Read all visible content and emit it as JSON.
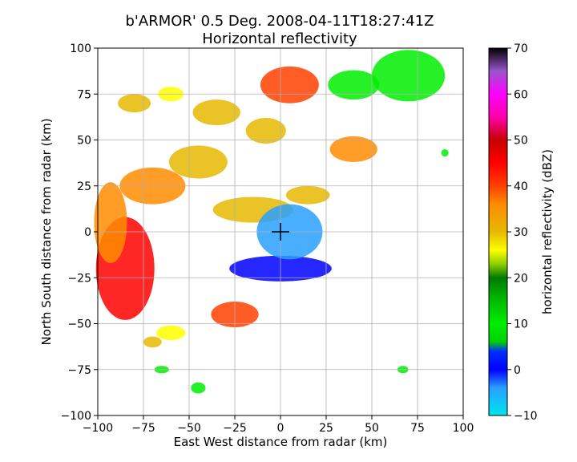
{
  "chart_data": {
    "type": "heatmap",
    "title": "b'ARMOR' 0.5 Deg. 2008-04-11T18:27:41Z",
    "subtitle": "Horizontal reflectivity",
    "xlabel": "East West distance from radar (km)",
    "ylabel": "North South distance from radar (km)",
    "xlim": [
      -100,
      100
    ],
    "ylim": [
      -100,
      100
    ],
    "xticks": [
      "−100",
      "−75",
      "−50",
      "−25",
      "0",
      "25",
      "50",
      "75",
      "100"
    ],
    "yticks": [
      "100",
      "75",
      "50",
      "25",
      "0",
      "−25",
      "−50",
      "−75",
      "−100"
    ],
    "xtick_values": [
      -100,
      -75,
      -50,
      -25,
      0,
      25,
      50,
      75,
      100
    ],
    "ytick_values": [
      100,
      75,
      50,
      25,
      0,
      -25,
      -50,
      -75,
      -100
    ],
    "grid": true,
    "radar_marker": [
      0,
      0
    ],
    "colorbar": {
      "label": "horizontal reflectivity (dBZ)",
      "range": [
        -10,
        70
      ],
      "ticks": [
        "70",
        "60",
        "50",
        "40",
        "30",
        "20",
        "10",
        "0",
        "−10"
      ],
      "tick_values": [
        70,
        60,
        50,
        40,
        30,
        20,
        10,
        0,
        -10
      ],
      "stops": [
        {
          "v": -10,
          "c": "#00e5ee"
        },
        {
          "v": -4,
          "c": "#2aa0ff"
        },
        {
          "v": 0,
          "c": "#0000ff"
        },
        {
          "v": 4,
          "c": "#0030ff"
        },
        {
          "v": 6,
          "c": "#00d000"
        },
        {
          "v": 10,
          "c": "#00ee00"
        },
        {
          "v": 16,
          "c": "#00b000"
        },
        {
          "v": 20,
          "c": "#007a00"
        },
        {
          "v": 23,
          "c": "#8ecf00"
        },
        {
          "v": 26,
          "c": "#ffff00"
        },
        {
          "v": 30,
          "c": "#e6b800"
        },
        {
          "v": 36,
          "c": "#ff8c00"
        },
        {
          "v": 40,
          "c": "#ff4000"
        },
        {
          "v": 45,
          "c": "#ff0000"
        },
        {
          "v": 50,
          "c": "#c80000"
        },
        {
          "v": 55,
          "c": "#ff00aa"
        },
        {
          "v": 60,
          "c": "#ff00ff"
        },
        {
          "v": 65,
          "c": "#9955cc"
        },
        {
          "v": 70,
          "c": "#000000"
        }
      ]
    },
    "echo_cells": [
      {
        "x": -85,
        "y": -20,
        "rx": 16,
        "ry": 28,
        "dbz": 47
      },
      {
        "x": -93,
        "y": 5,
        "rx": 9,
        "ry": 22,
        "dbz": 38
      },
      {
        "x": -70,
        "y": 25,
        "rx": 18,
        "ry": 10,
        "dbz": 36
      },
      {
        "x": -45,
        "y": 38,
        "rx": 16,
        "ry": 9,
        "dbz": 34
      },
      {
        "x": -35,
        "y": 65,
        "rx": 13,
        "ry": 7,
        "dbz": 32
      },
      {
        "x": 5,
        "y": 80,
        "rx": 16,
        "ry": 10,
        "dbz": 40
      },
      {
        "x": -8,
        "y": 55,
        "rx": 11,
        "ry": 7,
        "dbz": 34
      },
      {
        "x": 40,
        "y": 45,
        "rx": 13,
        "ry": 7,
        "dbz": 38
      },
      {
        "x": -15,
        "y": 12,
        "rx": 22,
        "ry": 7,
        "dbz": 32
      },
      {
        "x": 15,
        "y": 20,
        "rx": 12,
        "ry": 5,
        "dbz": 30
      },
      {
        "x": -25,
        "y": -45,
        "rx": 13,
        "ry": 7,
        "dbz": 43
      },
      {
        "x": -80,
        "y": 70,
        "rx": 9,
        "ry": 5,
        "dbz": 30
      },
      {
        "x": -60,
        "y": 75,
        "rx": 7,
        "ry": 4,
        "dbz": 28
      },
      {
        "x": 0,
        "y": -20,
        "rx": 28,
        "ry": 7,
        "dbz": 2
      },
      {
        "x": 5,
        "y": 0,
        "rx": 18,
        "ry": 15,
        "dbz": -4
      },
      {
        "x": 70,
        "y": 85,
        "rx": 20,
        "ry": 14,
        "dbz": 12
      },
      {
        "x": 40,
        "y": 80,
        "rx": 14,
        "ry": 8,
        "dbz": 12
      },
      {
        "x": -60,
        "y": -55,
        "rx": 8,
        "ry": 4,
        "dbz": 26
      },
      {
        "x": -70,
        "y": -60,
        "rx": 5,
        "ry": 3,
        "dbz": 33
      },
      {
        "x": -65,
        "y": -75,
        "rx": 4,
        "ry": 2,
        "dbz": 12
      },
      {
        "x": -45,
        "y": -85,
        "rx": 4,
        "ry": 3,
        "dbz": 12
      },
      {
        "x": 67,
        "y": -75,
        "rx": 3,
        "ry": 2,
        "dbz": 10
      },
      {
        "x": 90,
        "y": 43,
        "rx": 2,
        "ry": 2,
        "dbz": 10
      }
    ]
  }
}
